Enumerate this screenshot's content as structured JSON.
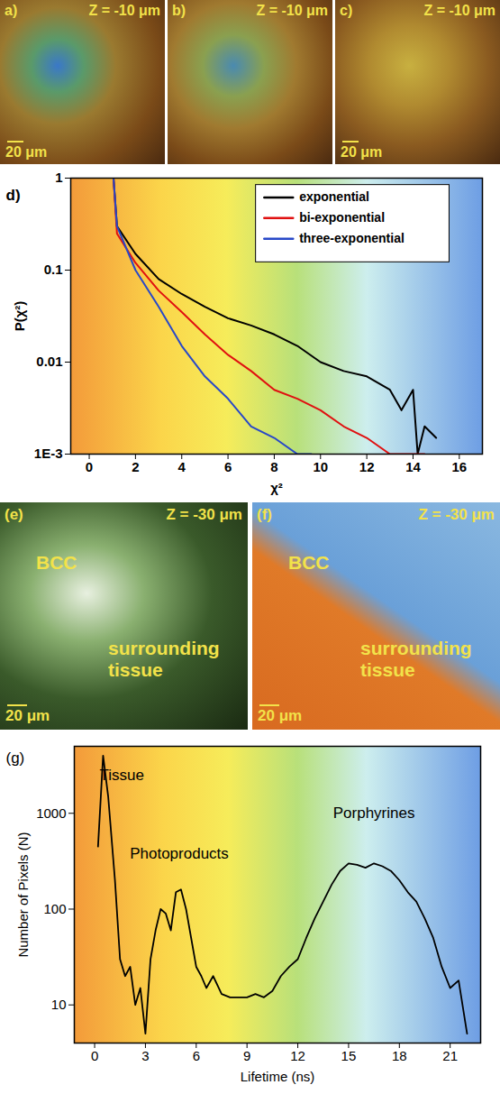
{
  "images_top": [
    {
      "label": "a)",
      "depth": "Z = -10 μm",
      "scale_bar": "20 μm"
    },
    {
      "label": "b)",
      "depth": "Z = -10 μm"
    },
    {
      "label": "c)",
      "depth": "Z = -10 μm",
      "scale_bar": "20 μm"
    }
  ],
  "images_bottom": [
    {
      "label": "(e)",
      "depth": "Z = -30 μm",
      "regions": [
        "BCC",
        "surrounding tissue"
      ],
      "scale_bar": "20 μm"
    },
    {
      "label": "(f)",
      "depth": "Z = -30 μm",
      "regions": [
        "BCC",
        "surrounding tissue"
      ],
      "scale_bar": "20 μm"
    }
  ],
  "chart_data": [
    {
      "type": "line",
      "panel": "d)",
      "x_label": "χ²",
      "y_label": "P(χ²)",
      "log": "y",
      "legend": "top-right",
      "grid": false,
      "xlim": [
        -0.8,
        17
      ],
      "xticks": [
        0,
        2,
        4,
        6,
        8,
        10,
        12,
        14,
        16
      ],
      "ylim": [
        0.001,
        1
      ],
      "yticks": [
        {
          "value": 0.001,
          "label": "1E-3"
        },
        0.01,
        0.1,
        1
      ],
      "series": [
        {
          "name": "exponential",
          "color": "#000000",
          "x": [
            1.05,
            1.2,
            2,
            3,
            4,
            5,
            6,
            7,
            8,
            9,
            10,
            11,
            12,
            13,
            13.5,
            14,
            14.2,
            14.5,
            15
          ],
          "values": [
            1,
            0.3,
            0.15,
            0.08,
            0.055,
            0.04,
            0.03,
            0.025,
            0.02,
            0.015,
            0.01,
            0.008,
            0.007,
            0.005,
            0.003,
            0.005,
            0.001,
            0.002,
            0.0015
          ]
        },
        {
          "name": "bi-exponential",
          "color": "#e01010",
          "x": [
            1.05,
            1.2,
            2,
            3,
            4,
            5,
            6,
            7,
            8,
            9,
            10,
            11,
            12,
            13,
            14,
            14.5
          ],
          "values": [
            1,
            0.25,
            0.12,
            0.06,
            0.035,
            0.02,
            0.012,
            0.008,
            0.005,
            0.004,
            0.003,
            0.002,
            0.0015,
            0.001,
            0.001,
            0.001
          ]
        },
        {
          "name": "three-exponential",
          "color": "#2848c8",
          "x": [
            1.05,
            1.2,
            2,
            3,
            4,
            5,
            6,
            7,
            8,
            9,
            9.6
          ],
          "values": [
            1,
            0.3,
            0.1,
            0.04,
            0.015,
            0.007,
            0.004,
            0.002,
            0.0015,
            0.001,
            0.001
          ]
        }
      ]
    },
    {
      "type": "line",
      "panel": "(g)",
      "x_label": "Lifetime (ns)",
      "y_label": "Number of Pixels (N)",
      "log": "y",
      "grid": false,
      "color": "#000000",
      "xlim": [
        -1.2,
        22.8
      ],
      "xticks": [
        0,
        3,
        6,
        9,
        12,
        15,
        18,
        21
      ],
      "ylim": [
        4,
        5000
      ],
      "yticks": [
        10,
        100,
        1000
      ],
      "x": [
        0.2,
        0.5,
        0.8,
        1.2,
        1.5,
        1.8,
        2.1,
        2.4,
        2.7,
        3.0,
        3.3,
        3.6,
        3.9,
        4.2,
        4.5,
        4.8,
        5.1,
        5.4,
        5.7,
        6.0,
        6.3,
        6.6,
        7,
        7.5,
        8,
        8.5,
        9,
        9.5,
        10,
        10.5,
        11,
        11.5,
        12,
        12.5,
        13,
        13.5,
        14,
        14.5,
        15,
        15.5,
        16,
        16.5,
        17,
        17.5,
        18,
        18.5,
        19,
        19.5,
        20,
        20.5,
        21,
        21.5,
        22
      ],
      "values": [
        450,
        4000,
        1500,
        200,
        30,
        20,
        25,
        10,
        15,
        5,
        30,
        60,
        100,
        90,
        60,
        150,
        160,
        100,
        50,
        25,
        20,
        15,
        20,
        13,
        12,
        12,
        12,
        13,
        12,
        14,
        20,
        25,
        30,
        50,
        80,
        120,
        180,
        250,
        300,
        290,
        270,
        300,
        280,
        250,
        200,
        150,
        120,
        80,
        50,
        25,
        15,
        18,
        5
      ],
      "annotations": [
        {
          "text": "Tissue",
          "x": 1.6,
          "y": 2500
        },
        {
          "text": "Photoproducts",
          "x": 5,
          "y": 380
        },
        {
          "text": "Porphyrines",
          "x": 16.5,
          "y": 1000
        }
      ]
    }
  ]
}
